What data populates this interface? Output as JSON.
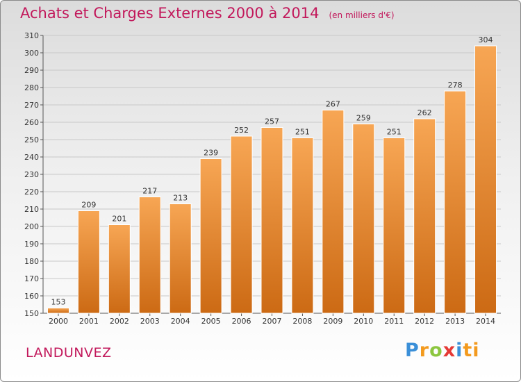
{
  "header": {
    "title": "Achats et Charges Externes 2000 à 2014",
    "subtitle": "(en milliers d'€)"
  },
  "footer": {
    "commune": "LANDUNVEZ",
    "brand": "Proxiti"
  },
  "colors": {
    "bar_top": "#f7a654",
    "bar_bottom": "#cc6a14",
    "title": "#c2185b",
    "grid": "#c8c8c8"
  },
  "chart_data": {
    "type": "bar",
    "title": "Achats et Charges Externes 2000 à 2014",
    "subtitle": "(en milliers d'€)",
    "xlabel": "",
    "ylabel": "",
    "categories": [
      "2000",
      "2001",
      "2002",
      "2003",
      "2004",
      "2005",
      "2006",
      "2007",
      "2008",
      "2009",
      "2010",
      "2011",
      "2012",
      "2013",
      "2014"
    ],
    "values": [
      153,
      209,
      201,
      217,
      213,
      239,
      252,
      257,
      251,
      267,
      259,
      251,
      262,
      278,
      304
    ],
    "ylim": [
      150,
      310
    ],
    "yticks": [
      150,
      160,
      170,
      180,
      190,
      200,
      210,
      220,
      230,
      240,
      250,
      260,
      270,
      280,
      290,
      300,
      310
    ],
    "grid": true,
    "legend": "none"
  }
}
